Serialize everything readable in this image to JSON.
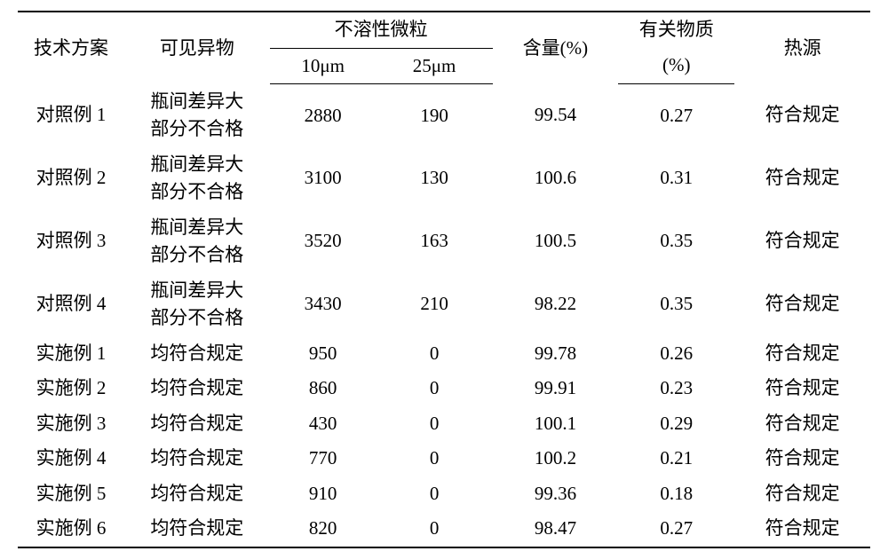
{
  "table": {
    "headers": {
      "plan": "技术方案",
      "visible": "可见异物",
      "particles": "不溶性微粒",
      "p10": "10μm",
      "p25": "25μm",
      "content": "含量(%)",
      "related_a": "有关物质",
      "related_b": "(%)",
      "heat": "热源"
    },
    "rows": [
      {
        "plan": "对照例 1",
        "visible_a": "瓶间差异大",
        "visible_b": "部分不合格",
        "p10": "2880",
        "p25": "190",
        "content": "99.54",
        "related": "0.27",
        "heat": "符合规定",
        "tall": true
      },
      {
        "plan": "对照例 2",
        "visible_a": "瓶间差异大",
        "visible_b": "部分不合格",
        "p10": "3100",
        "p25": "130",
        "content": "100.6",
        "related": "0.31",
        "heat": "符合规定",
        "tall": true
      },
      {
        "plan": "对照例 3",
        "visible_a": "瓶间差异大",
        "visible_b": "部分不合格",
        "p10": "3520",
        "p25": "163",
        "content": "100.5",
        "related": "0.35",
        "heat": "符合规定",
        "tall": true
      },
      {
        "plan": "对照例 4",
        "visible_a": "瓶间差异大",
        "visible_b": "部分不合格",
        "p10": "3430",
        "p25": "210",
        "content": "98.22",
        "related": "0.35",
        "heat": "符合规定",
        "tall": true
      },
      {
        "plan": "实施例 1",
        "visible_a": "均符合规定",
        "visible_b": "",
        "p10": "950",
        "p25": "0",
        "content": "99.78",
        "related": "0.26",
        "heat": "符合规定",
        "tall": false
      },
      {
        "plan": "实施例 2",
        "visible_a": "均符合规定",
        "visible_b": "",
        "p10": "860",
        "p25": "0",
        "content": "99.91",
        "related": "0.23",
        "heat": "符合规定",
        "tall": false
      },
      {
        "plan": "实施例 3",
        "visible_a": "均符合规定",
        "visible_b": "",
        "p10": "430",
        "p25": "0",
        "content": "100.1",
        "related": "0.29",
        "heat": "符合规定",
        "tall": false
      },
      {
        "plan": "实施例 4",
        "visible_a": "均符合规定",
        "visible_b": "",
        "p10": "770",
        "p25": "0",
        "content": "100.2",
        "related": "0.21",
        "heat": "符合规定",
        "tall": false
      },
      {
        "plan": "实施例 5",
        "visible_a": "均符合规定",
        "visible_b": "",
        "p10": "910",
        "p25": "0",
        "content": "99.36",
        "related": "0.18",
        "heat": "符合规定",
        "tall": false
      },
      {
        "plan": "实施例 6",
        "visible_a": "均符合规定",
        "visible_b": "",
        "p10": "820",
        "p25": "0",
        "content": "98.47",
        "related": "0.27",
        "heat": "符合规定",
        "tall": false
      }
    ]
  }
}
